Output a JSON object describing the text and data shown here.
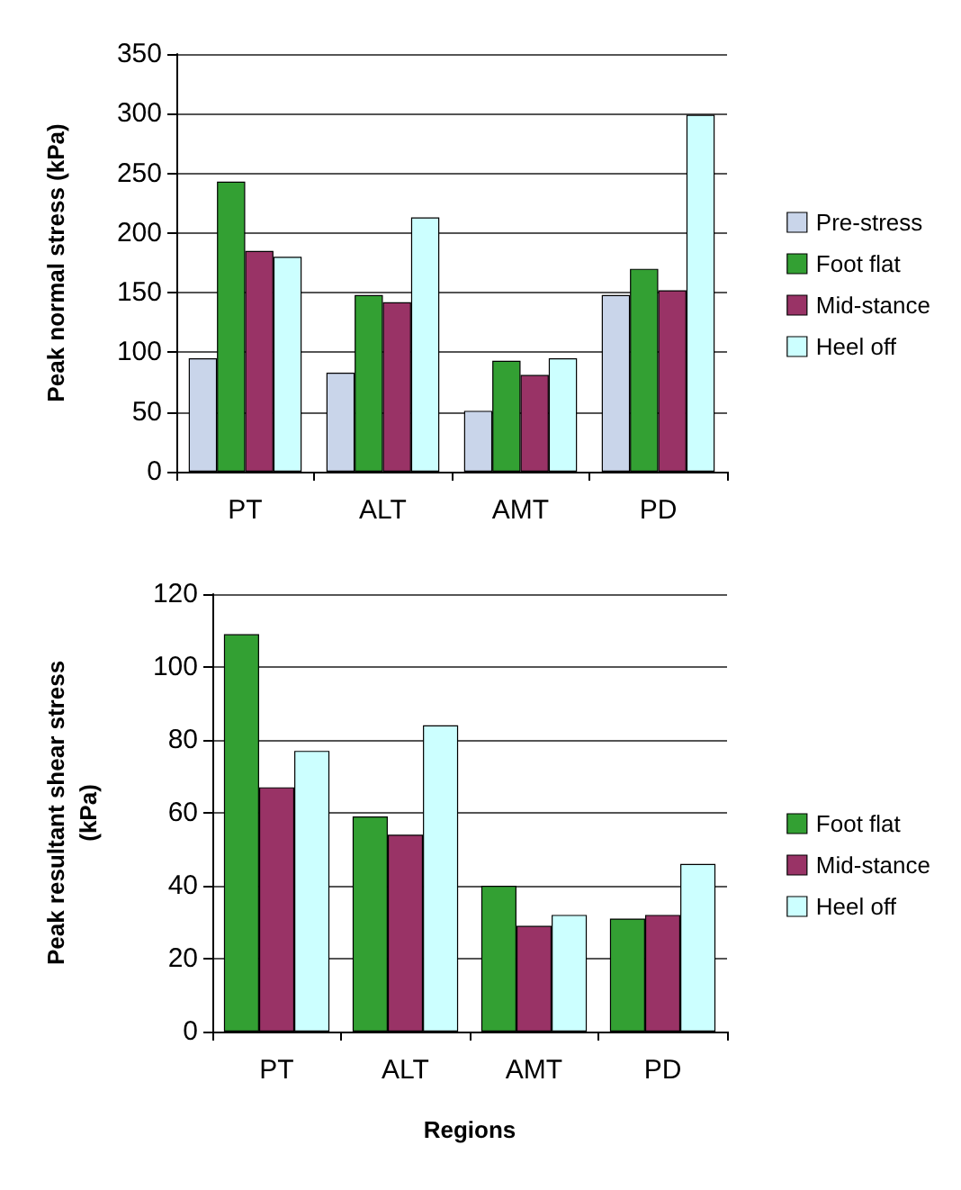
{
  "chart_data": [
    {
      "type": "bar",
      "ylabel": "Peak normal stress (kPa)",
      "categories": [
        "PT",
        "ALT",
        "AMT",
        "PD"
      ],
      "series": [
        {
          "name": "Pre-stress",
          "color": "#c9d5ea",
          "values": [
            95,
            83,
            51,
            148
          ]
        },
        {
          "name": "Foot flat",
          "color": "#33a033",
          "values": [
            243,
            148,
            93,
            170
          ]
        },
        {
          "name": "Mid-stance",
          "color": "#993366",
          "values": [
            185,
            142,
            81,
            152
          ]
        },
        {
          "name": "Heel off",
          "color": "#ccffff",
          "values": [
            180,
            213,
            95,
            299
          ]
        }
      ],
      "ylim": [
        0,
        350
      ],
      "yticks": [
        0,
        50,
        100,
        150,
        200,
        250,
        300,
        350
      ],
      "grid": "y",
      "legend": "right"
    },
    {
      "type": "bar",
      "ylabel": "Peak resultant shear stress\n(kPa)",
      "xlabel": "Regions",
      "categories": [
        "PT",
        "ALT",
        "AMT",
        "PD"
      ],
      "series": [
        {
          "name": "Foot flat",
          "color": "#33a033",
          "values": [
            109,
            59,
            40,
            31
          ]
        },
        {
          "name": "Mid-stance",
          "color": "#993366",
          "values": [
            67,
            54,
            29,
            32
          ]
        },
        {
          "name": "Heel off",
          "color": "#ccffff",
          "values": [
            77,
            84,
            32,
            46
          ]
        }
      ],
      "ylim": [
        0,
        120
      ],
      "yticks": [
        0,
        20,
        40,
        60,
        80,
        100,
        120
      ],
      "grid": "y",
      "legend": "right"
    }
  ]
}
